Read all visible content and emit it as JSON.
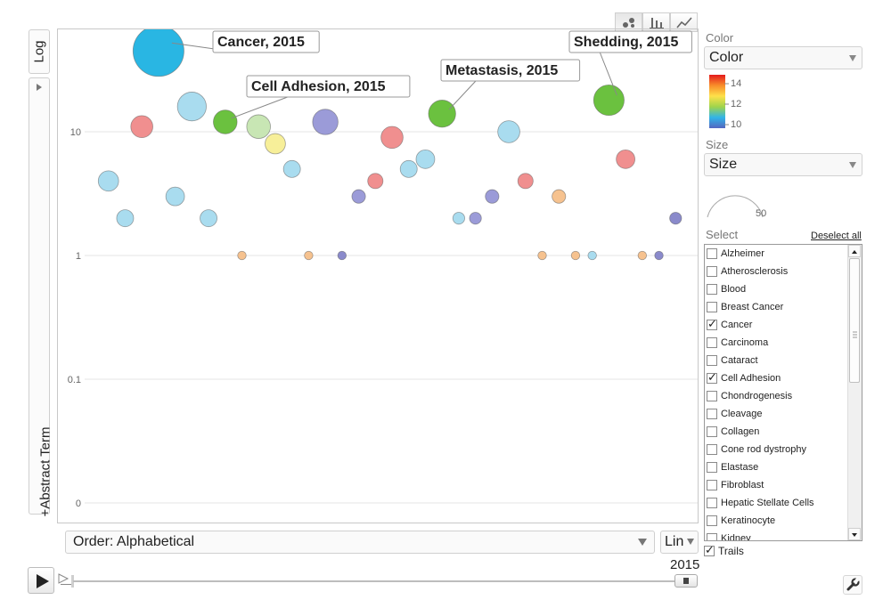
{
  "chart_types": [
    {
      "name": "bubble",
      "icon": "bubble-chart-icon",
      "active": true
    },
    {
      "name": "bar",
      "icon": "bar-chart-icon",
      "active": false
    },
    {
      "name": "line",
      "icon": "line-chart-icon",
      "active": false
    }
  ],
  "y_axis": {
    "scale_label": "Log",
    "variable_label": "+Abstract Term",
    "ticks": [
      "10",
      "1",
      "0.1",
      "0"
    ]
  },
  "x_axis": {
    "order_label": "Order: Alphabetical",
    "scale_label": "Lin"
  },
  "chart_data": {
    "type": "scatter",
    "title": "",
    "xlabel": "",
    "ylabel": "+Abstract Term",
    "y_scale": "log",
    "grid": true,
    "points": [
      {
        "x": 1,
        "y": 4,
        "size": 12,
        "color": "#a9dcef"
      },
      {
        "x": 2,
        "y": 2,
        "size": 10,
        "color": "#a9dcef"
      },
      {
        "x": 3,
        "y": 11,
        "size": 13,
        "color": "#f08f8f"
      },
      {
        "x": 4,
        "y": 45,
        "size": 30,
        "color": "#29b6e3",
        "label": "Cancer, 2015"
      },
      {
        "x": 5,
        "y": 3,
        "size": 11,
        "color": "#a9dcef"
      },
      {
        "x": 6,
        "y": 16,
        "size": 17,
        "color": "#a9dcef"
      },
      {
        "x": 7,
        "y": 2,
        "size": 10,
        "color": "#a9dcef"
      },
      {
        "x": 8,
        "y": 12,
        "size": 14,
        "color": "#6bc13f",
        "label": "Cell Adhesion, 2015"
      },
      {
        "x": 9,
        "y": 1,
        "size": 5,
        "color": "#f6c28f"
      },
      {
        "x": 10,
        "y": 11,
        "size": 14,
        "color": "#c8e6b4"
      },
      {
        "x": 11,
        "y": 8,
        "size": 12,
        "color": "#f7ef99"
      },
      {
        "x": 12,
        "y": 5,
        "size": 10,
        "color": "#a9dcef"
      },
      {
        "x": 13,
        "y": 1,
        "size": 5,
        "color": "#f6c28f"
      },
      {
        "x": 14,
        "y": 12,
        "size": 15,
        "color": "#9b9bd8"
      },
      {
        "x": 15,
        "y": 1,
        "size": 5,
        "color": "#8a8acb"
      },
      {
        "x": 16,
        "y": 3,
        "size": 8,
        "color": "#9b9bd8"
      },
      {
        "x": 17,
        "y": 4,
        "size": 9,
        "color": "#f08f8f"
      },
      {
        "x": 18,
        "y": 9,
        "size": 13,
        "color": "#f08f8f"
      },
      {
        "x": 19,
        "y": 5,
        "size": 10,
        "color": "#a9dcef"
      },
      {
        "x": 20,
        "y": 6,
        "size": 11,
        "color": "#a9dcef"
      },
      {
        "x": 21,
        "y": 14,
        "size": 16,
        "color": "#6bc13f",
        "label": "Metastasis, 2015"
      },
      {
        "x": 22,
        "y": 2,
        "size": 7,
        "color": "#a9dcef"
      },
      {
        "x": 23,
        "y": 2,
        "size": 7,
        "color": "#9b9bd8"
      },
      {
        "x": 24,
        "y": 3,
        "size": 8,
        "color": "#9b9bd8"
      },
      {
        "x": 25,
        "y": 10,
        "size": 13,
        "color": "#a9dcef"
      },
      {
        "x": 26,
        "y": 4,
        "size": 9,
        "color": "#f08f8f"
      },
      {
        "x": 27,
        "y": 1,
        "size": 5,
        "color": "#f6c28f"
      },
      {
        "x": 28,
        "y": 3,
        "size": 8,
        "color": "#f6c28f"
      },
      {
        "x": 29,
        "y": 1,
        "size": 5,
        "color": "#f6c28f"
      },
      {
        "x": 30,
        "y": 1,
        "size": 5,
        "color": "#a9dcef"
      },
      {
        "x": 31,
        "y": 18,
        "size": 18,
        "color": "#6bc13f",
        "label": "Shedding, 2015"
      },
      {
        "x": 32,
        "y": 6,
        "size": 11,
        "color": "#f08f8f"
      },
      {
        "x": 33,
        "y": 1,
        "size": 5,
        "color": "#f6c28f"
      },
      {
        "x": 34,
        "y": 1,
        "size": 5,
        "color": "#8a8acb"
      },
      {
        "x": 35,
        "y": 2,
        "size": 7,
        "color": "#8a8acb"
      }
    ],
    "x_range": [
      0,
      36
    ]
  },
  "color_panel": {
    "label": "Color",
    "value": "Color",
    "legend_ticks": [
      "14",
      "12",
      "10"
    ],
    "gradient": [
      "#e41a1c",
      "#f88d2a",
      "#fee14a",
      "#9fd44b",
      "#31b4e8",
      "#5466c1"
    ]
  },
  "size_panel": {
    "label": "Size",
    "value": "Size",
    "max_label": "50"
  },
  "select_panel": {
    "label": "Select",
    "deselect_label": "Deselect all",
    "items": [
      {
        "label": "Alzheimer",
        "checked": false
      },
      {
        "label": "Atherosclerosis",
        "checked": false
      },
      {
        "label": "Blood",
        "checked": false
      },
      {
        "label": "Breast Cancer",
        "checked": false
      },
      {
        "label": "Cancer",
        "checked": true
      },
      {
        "label": "Carcinoma",
        "checked": false
      },
      {
        "label": "Cataract",
        "checked": false
      },
      {
        "label": "Cell Adhesion",
        "checked": true
      },
      {
        "label": "Chondrogenesis",
        "checked": false
      },
      {
        "label": "Cleavage",
        "checked": false
      },
      {
        "label": "Collagen",
        "checked": false
      },
      {
        "label": "Cone rod dystrophy",
        "checked": false
      },
      {
        "label": "Elastase",
        "checked": false
      },
      {
        "label": "Fibroblast",
        "checked": false
      },
      {
        "label": "Hepatic Stellate Cells",
        "checked": false
      },
      {
        "label": "Keratinocyte",
        "checked": false
      },
      {
        "label": "Kidney",
        "checked": false
      }
    ]
  },
  "trails": {
    "label": "Trails",
    "checked": true
  },
  "playback": {
    "year": "2015"
  }
}
